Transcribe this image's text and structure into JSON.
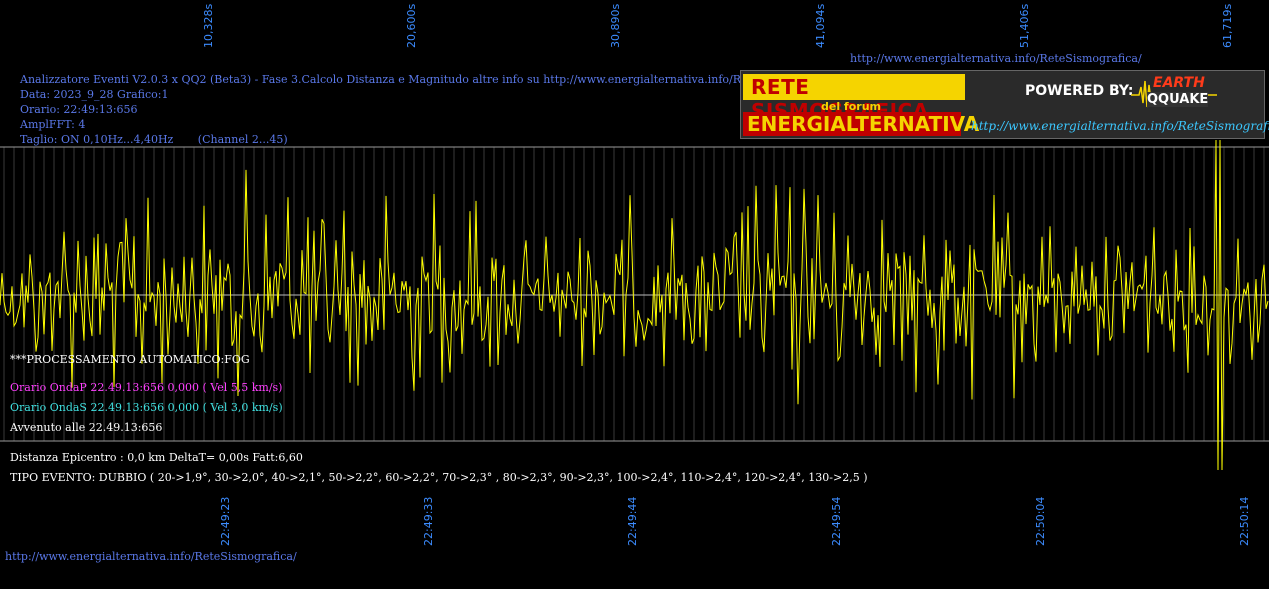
{
  "top_time_ticks": [
    "10,328s",
    "20,600s",
    "30,890s",
    "41,094s",
    "51,406s",
    "61,719s"
  ],
  "bottom_time_ticks": [
    "22:49:23",
    "22:49:33",
    "22:49:44",
    "22:49:54",
    "22:50:04",
    "22:50:14"
  ],
  "top_url": "http://www.energialternativa.info/ReteSismografica/",
  "bottom_url": "http://www.energialternativa.info/ReteSismografica/",
  "header": {
    "line1": "Analizzatore Eventi V2.0.3 x QQ2 (Beta3) - Fase 3.Calcolo Distanza e Magnitudo altre info su http://www.energialternativa.info/ReteSism",
    "line2": "Data: 2023_9_28 Grafico:1",
    "line3": "Orario: 22:49:13:656",
    "line4": "AmplFFT: 4",
    "line5": "Taglio: ON 0,10Hz...4,40Hz       (Channel 2...45)"
  },
  "logo": {
    "title_top": "RETE SISMOGRAFICA",
    "subtitle": "del forum",
    "title_bottom": "ENERGIALTERNATIVA",
    "powered_by": "POWERED BY:",
    "earth": "EARTH",
    "quake": "QQUAKE",
    "url": "http://www.energialternativa.info/ReteSismografica"
  },
  "info": {
    "processing": "***PROCESSAMENTO AUTOMATICO:FOG",
    "onda_p": "Orario OndaP 22.49.13:656  0,000 ( Vel 5,5 km/s)",
    "onda_s": "Orario OndaS 22.49.13:656  0,000 ( Vel 3,0 km/s)",
    "avvenuto": "Avvenuto alle 22.49.13:656",
    "distanza": "Distanza Epicentro : 0,0 km DeltaT= 0,00s  Fatt:6,60",
    "tipo_evento": "TIPO EVENTO: DUBBIO ( 20->1,9°, 30->2,0°, 40->2,1°, 50->2,2°, 60->2,2°, 70->2,3° , 80->2,3°, 90->2,3°, 100->2,4°, 110->2,4°, 120->2,4°, 130->2,5 )"
  },
  "colors": {
    "background": "#000000",
    "trace": "#ffff00",
    "grid": "#808080",
    "tick_text": "#3c8cff",
    "header_text": "#5a78e8",
    "onda_p": "#ff40ff",
    "onda_s": "#40e0e0"
  }
}
